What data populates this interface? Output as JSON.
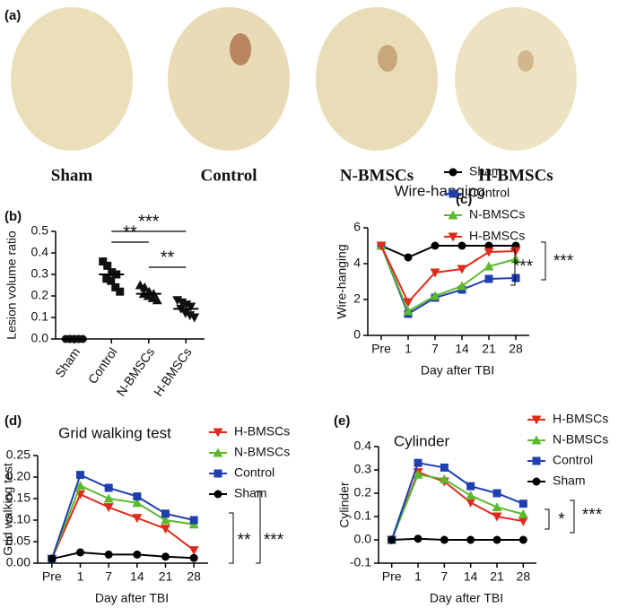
{
  "chart_data": [
    {
      "type": "image",
      "panel_label": "(a)",
      "categories": [
        "Sham",
        "Control",
        "N-BMSCs",
        "H-BMSCs"
      ]
    },
    {
      "type": "scatter",
      "panel_label": "(b)",
      "ylabel": "Lesion volume ratio",
      "categories": [
        "Sham",
        "Control",
        "N-BMSCs",
        "H-BMSCs"
      ],
      "points": [
        [
          0,
          0,
          0,
          0,
          0,
          0,
          0,
          0
        ],
        [
          0.36,
          0.34,
          0.31,
          0.3,
          0.28,
          0.27,
          0.24,
          0.22
        ],
        [
          0.25,
          0.24,
          0.22,
          0.21,
          0.21,
          0.2,
          0.19,
          0.18
        ],
        [
          0.18,
          0.17,
          0.16,
          0.15,
          0.14,
          0.12,
          0.11,
          0.1
        ]
      ],
      "means": [
        0,
        0.3,
        0.21,
        0.14
      ],
      "ylim": [
        0,
        0.5
      ],
      "yticks": [
        {
          "value": 0,
          "label": "0.0"
        },
        0.1,
        0.2,
        0.3,
        0.4,
        0.5
      ],
      "annotations": [
        "**",
        "***",
        "**"
      ]
    },
    {
      "type": "line",
      "panel_label": "(c)",
      "title": "Wire-hanging",
      "xlabel": "Day after TBI",
      "ylabel": "Wire-hanging",
      "categories": [
        "Pre",
        "1",
        "7",
        "14",
        "21",
        "28"
      ],
      "series": [
        {
          "name": "Sham",
          "color": "#000000",
          "marker": "circle",
          "values": [
            5,
            4.35,
            5,
            5,
            5,
            5
          ]
        },
        {
          "name": "Control",
          "color": "#1f3fb0",
          "marker": "square",
          "values": [
            5,
            1.2,
            2.1,
            2.55,
            3.15,
            3.2
          ]
        },
        {
          "name": "N-BMSCs",
          "color": "#5cb82e",
          "marker": "triangle",
          "values": [
            5,
            1.35,
            2.2,
            2.75,
            3.85,
            4.25
          ]
        },
        {
          "name": "H-BMSCs",
          "color": "#e02a1a",
          "marker": "triangle-down",
          "values": [
            5,
            1.85,
            3.5,
            3.7,
            4.65,
            4.7
          ]
        }
      ],
      "ylim": [
        0,
        6
      ],
      "yticks": [
        0,
        2,
        4,
        6
      ],
      "annotations": [
        "***",
        "***"
      ]
    },
    {
      "type": "line",
      "panel_label": "(d)",
      "title": "Grid walking test",
      "xlabel": "Day after TBI",
      "ylabel": "Grid walking test",
      "categories": [
        "Pre",
        "1",
        "7",
        "14",
        "21",
        "28"
      ],
      "series": [
        {
          "name": "H-BMSCs",
          "color": "#e02a1a",
          "marker": "triangle-down",
          "values": [
            0.01,
            0.16,
            0.13,
            0.105,
            0.08,
            0.03
          ]
        },
        {
          "name": "N-BMSCs",
          "color": "#5cb82e",
          "marker": "triangle",
          "values": [
            0.01,
            0.18,
            0.15,
            0.14,
            0.1,
            0.09
          ]
        },
        {
          "name": "Control",
          "color": "#1f3fb0",
          "marker": "square",
          "values": [
            0.01,
            0.205,
            0.175,
            0.155,
            0.115,
            0.1
          ]
        },
        {
          "name": "Sham",
          "color": "#000000",
          "marker": "circle",
          "values": [
            0.01,
            0.025,
            0.02,
            0.02,
            0.015,
            0.012
          ]
        }
      ],
      "ylim": [
        0,
        0.25
      ],
      "yticks": [
        {
          "value": 0,
          "label": "0.00"
        },
        {
          "value": 0.05,
          "label": "0.05"
        },
        {
          "value": 0.1,
          "label": "0.10"
        },
        {
          "value": 0.15,
          "label": "0.15"
        },
        {
          "value": 0.2,
          "label": "0.20"
        },
        {
          "value": 0.25,
          "label": "0.25"
        }
      ],
      "annotations": [
        "**",
        "***"
      ]
    },
    {
      "type": "line",
      "panel_label": "(e)",
      "title": "Cylinder",
      "xlabel": "Day after TBI",
      "ylabel": "Cylinder",
      "categories": [
        "Pre",
        "1",
        "7",
        "14",
        "21",
        "28"
      ],
      "series": [
        {
          "name": "H-BMSCs",
          "color": "#e02a1a",
          "marker": "triangle-down",
          "values": [
            0,
            0.29,
            0.25,
            0.16,
            0.1,
            0.08
          ]
        },
        {
          "name": "N-BMSCs",
          "color": "#5cb82e",
          "marker": "triangle",
          "values": [
            0,
            0.28,
            0.26,
            0.19,
            0.14,
            0.11
          ]
        },
        {
          "name": "Control",
          "color": "#1f3fb0",
          "marker": "square",
          "values": [
            0,
            0.33,
            0.31,
            0.23,
            0.2,
            0.155
          ]
        },
        {
          "name": "Sham",
          "color": "#000000",
          "marker": "circle",
          "values": [
            0,
            0.005,
            0,
            0,
            0,
            0
          ]
        }
      ],
      "ylim": [
        -0.1,
        0.4
      ],
      "yticks": [
        -0.1,
        {
          "value": 0,
          "label": "0.0"
        },
        0.1,
        0.2,
        0.3,
        0.4
      ],
      "annotations": [
        "*",
        "***"
      ]
    }
  ]
}
